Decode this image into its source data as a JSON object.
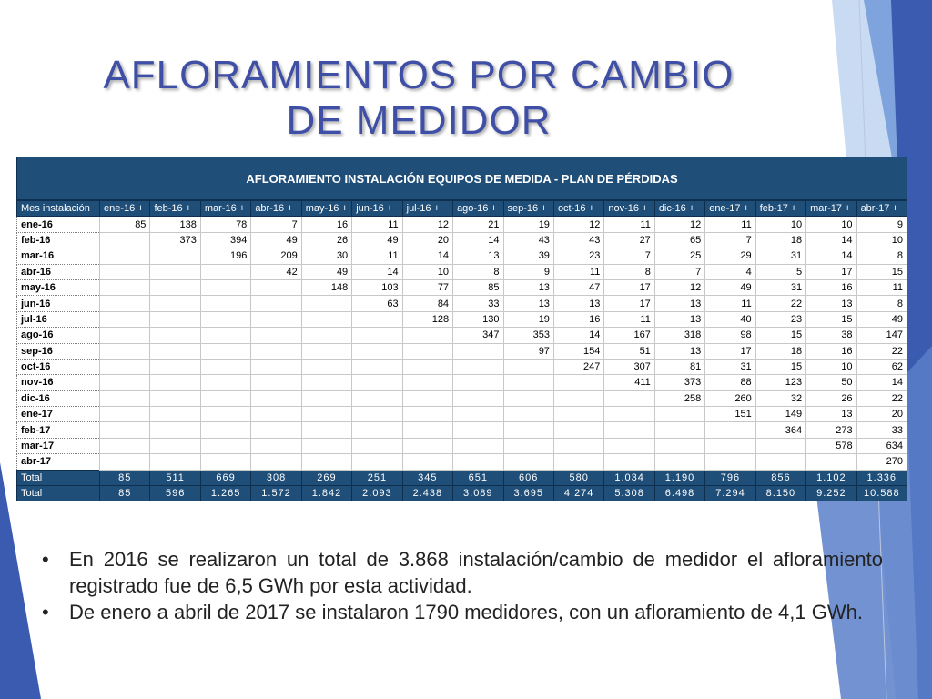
{
  "title": [
    "AFLORAMIENTOS POR CAMBIO",
    "DE MEDIDOR"
  ],
  "table": {
    "header": "AFLORAMIENTO INSTALACIÓN EQUIPOS DE MEDIDA  - PLAN DE PÉRDIDAS",
    "corner": "Mes instalación",
    "columns": [
      "ene-16 +",
      "feb-16 +",
      "mar-16 +",
      "abr-16 +",
      "may-16 +",
      "jun-16 +",
      "jul-16 +",
      "ago-16 +",
      "sep-16 +",
      "oct-16 +",
      "nov-16 +",
      "dic-16 +",
      "ene-17 +",
      "feb-17 +",
      "mar-17 +",
      "abr-17 +"
    ],
    "rows": [
      {
        "label": "ene-16",
        "cells": [
          "85",
          "138",
          "78",
          "7",
          "16",
          "11",
          "12",
          "21",
          "19",
          "12",
          "11",
          "12",
          "11",
          "10",
          "10",
          "9"
        ]
      },
      {
        "label": "feb-16",
        "cells": [
          "",
          "373",
          "394",
          "49",
          "26",
          "49",
          "20",
          "14",
          "43",
          "43",
          "27",
          "65",
          "7",
          "18",
          "14",
          "10"
        ]
      },
      {
        "label": "mar-16",
        "cells": [
          "",
          "",
          "196",
          "209",
          "30",
          "11",
          "14",
          "13",
          "39",
          "23",
          "7",
          "25",
          "29",
          "31",
          "14",
          "8"
        ]
      },
      {
        "label": "abr-16",
        "cells": [
          "",
          "",
          "",
          "42",
          "49",
          "14",
          "10",
          "8",
          "9",
          "11",
          "8",
          "7",
          "4",
          "5",
          "17",
          "15"
        ]
      },
      {
        "label": "may-16",
        "cells": [
          "",
          "",
          "",
          "",
          "148",
          "103",
          "77",
          "85",
          "13",
          "47",
          "17",
          "12",
          "49",
          "31",
          "16",
          "11"
        ]
      },
      {
        "label": "jun-16",
        "cells": [
          "",
          "",
          "",
          "",
          "",
          "63",
          "84",
          "33",
          "13",
          "13",
          "17",
          "13",
          "11",
          "22",
          "13",
          "8"
        ]
      },
      {
        "label": "jul-16",
        "cells": [
          "",
          "",
          "",
          "",
          "",
          "",
          "128",
          "130",
          "19",
          "16",
          "11",
          "13",
          "40",
          "23",
          "15",
          "49"
        ]
      },
      {
        "label": "ago-16",
        "cells": [
          "",
          "",
          "",
          "",
          "",
          "",
          "",
          "347",
          "353",
          "14",
          "167",
          "318",
          "98",
          "15",
          "38",
          "147"
        ]
      },
      {
        "label": "sep-16",
        "cells": [
          "",
          "",
          "",
          "",
          "",
          "",
          "",
          "",
          "97",
          "154",
          "51",
          "13",
          "17",
          "18",
          "16",
          "22"
        ]
      },
      {
        "label": "oct-16",
        "cells": [
          "",
          "",
          "",
          "",
          "",
          "",
          "",
          "",
          "",
          "247",
          "307",
          "81",
          "31",
          "15",
          "10",
          "62"
        ]
      },
      {
        "label": "nov-16",
        "cells": [
          "",
          "",
          "",
          "",
          "",
          "",
          "",
          "",
          "",
          "",
          "411",
          "373",
          "88",
          "123",
          "50",
          "14"
        ]
      },
      {
        "label": "dic-16",
        "cells": [
          "",
          "",
          "",
          "",
          "",
          "",
          "",
          "",
          "",
          "",
          "",
          "258",
          "260",
          "32",
          "26",
          "22"
        ]
      },
      {
        "label": "ene-17",
        "cells": [
          "",
          "",
          "",
          "",
          "",
          "",
          "",
          "",
          "",
          "",
          "",
          "",
          "151",
          "149",
          "13",
          "20"
        ]
      },
      {
        "label": "feb-17",
        "cells": [
          "",
          "",
          "",
          "",
          "",
          "",
          "",
          "",
          "",
          "",
          "",
          "",
          "",
          "364",
          "273",
          "33"
        ]
      },
      {
        "label": "mar-17",
        "cells": [
          "",
          "",
          "",
          "",
          "",
          "",
          "",
          "",
          "",
          "",
          "",
          "",
          "",
          "",
          "578",
          "634"
        ]
      },
      {
        "label": "abr-17",
        "cells": [
          "",
          "",
          "",
          "",
          "",
          "",
          "",
          "",
          "",
          "",
          "",
          "",
          "",
          "",
          "",
          "270"
        ]
      }
    ],
    "totals": [
      {
        "label": "Total",
        "cells": [
          "85",
          "511",
          "669",
          "308",
          "269",
          "251",
          "345",
          "651",
          "606",
          "580",
          "1.034",
          "1.190",
          "796",
          "856",
          "1.102",
          "1.336"
        ]
      },
      {
        "label": "Total",
        "cells": [
          "85",
          "596",
          "1.265",
          "1.572",
          "1.842",
          "2.093",
          "2.438",
          "3.089",
          "3.695",
          "4.274",
          "5.308",
          "6.498",
          "7.294",
          "8.150",
          "9.252",
          "10.588"
        ]
      }
    ]
  },
  "bullets": [
    "En 2016 se realizaron un total de 3.868 instalación/cambio de medidor el afloramiento registrado fue de 6,5 GWh por esta actividad.",
    "De enero a abril de 2017 se instalaron 1790 medidores, con un afloramiento de 4,1 GWh."
  ],
  "bullet_symbol": "•",
  "colors": {
    "title": "#3f4fa6",
    "table_header_bg": "#1f4e79",
    "deco_dark": "#3a5bb0",
    "deco_light": "#a9c3ea"
  }
}
